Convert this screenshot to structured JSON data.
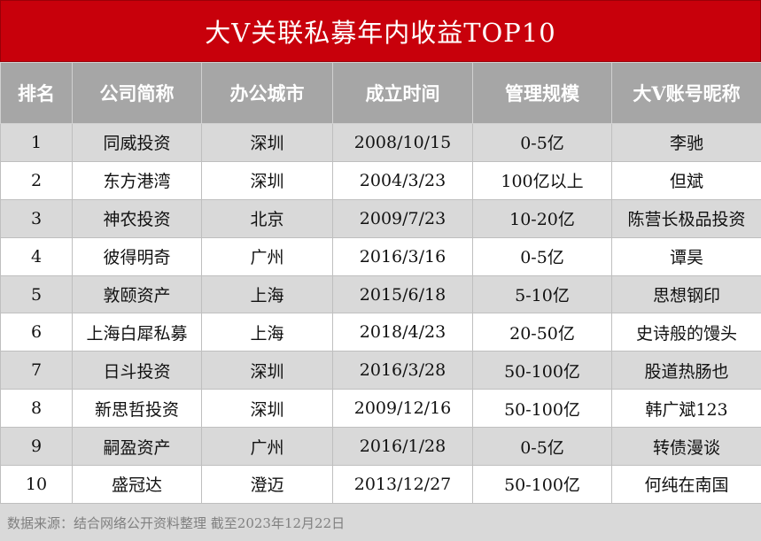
{
  "title": "大V关联私募年内收益TOP10",
  "headers": [
    "排名",
    "公司简称",
    "办公城市",
    "成立时间",
    "管理规模",
    "大V账号昵称"
  ],
  "rows": [
    [
      "1",
      "同威投资",
      "深圳",
      "2008/10/15",
      "0-5亿",
      "李驰"
    ],
    [
      "2",
      "东方港湾",
      "深圳",
      "2004/3/23",
      "100亿以上",
      "但斌"
    ],
    [
      "3",
      "神农投资",
      "北京",
      "2009/7/23",
      "10-20亿",
      "陈营长极品投资"
    ],
    [
      "4",
      "彼得明奇",
      "广州",
      "2016/3/16",
      "0-5亿",
      "谭昊"
    ],
    [
      "5",
      "敦颐资产",
      "上海",
      "2015/6/18",
      "5-10亿",
      "思想钢印"
    ],
    [
      "6",
      "上海白犀私募",
      "上海",
      "2018/4/23",
      "20-50亿",
      "史诗般的馒头"
    ],
    [
      "7",
      "日斗投资",
      "深圳",
      "2016/3/28",
      "50-100亿",
      "股道热肠也"
    ],
    [
      "8",
      "新思哲投资",
      "深圳",
      "2009/12/16",
      "50-100亿",
      "韩广斌123"
    ],
    [
      "9",
      "嗣盈资产",
      "广州",
      "2016/1/28",
      "0-5亿",
      "转债漫谈"
    ],
    [
      "10",
      "盛冠达",
      "澄迈",
      "2013/12/27",
      "50-100亿",
      "何纯在南国"
    ]
  ],
  "footer": "数据来源：结合网络公开资料整理 截至2023年12月22日",
  "colors": {
    "title_bg": "#c8000b",
    "header_bg": "#a6a6a6",
    "stripe_bg": "#d9d9d9"
  }
}
